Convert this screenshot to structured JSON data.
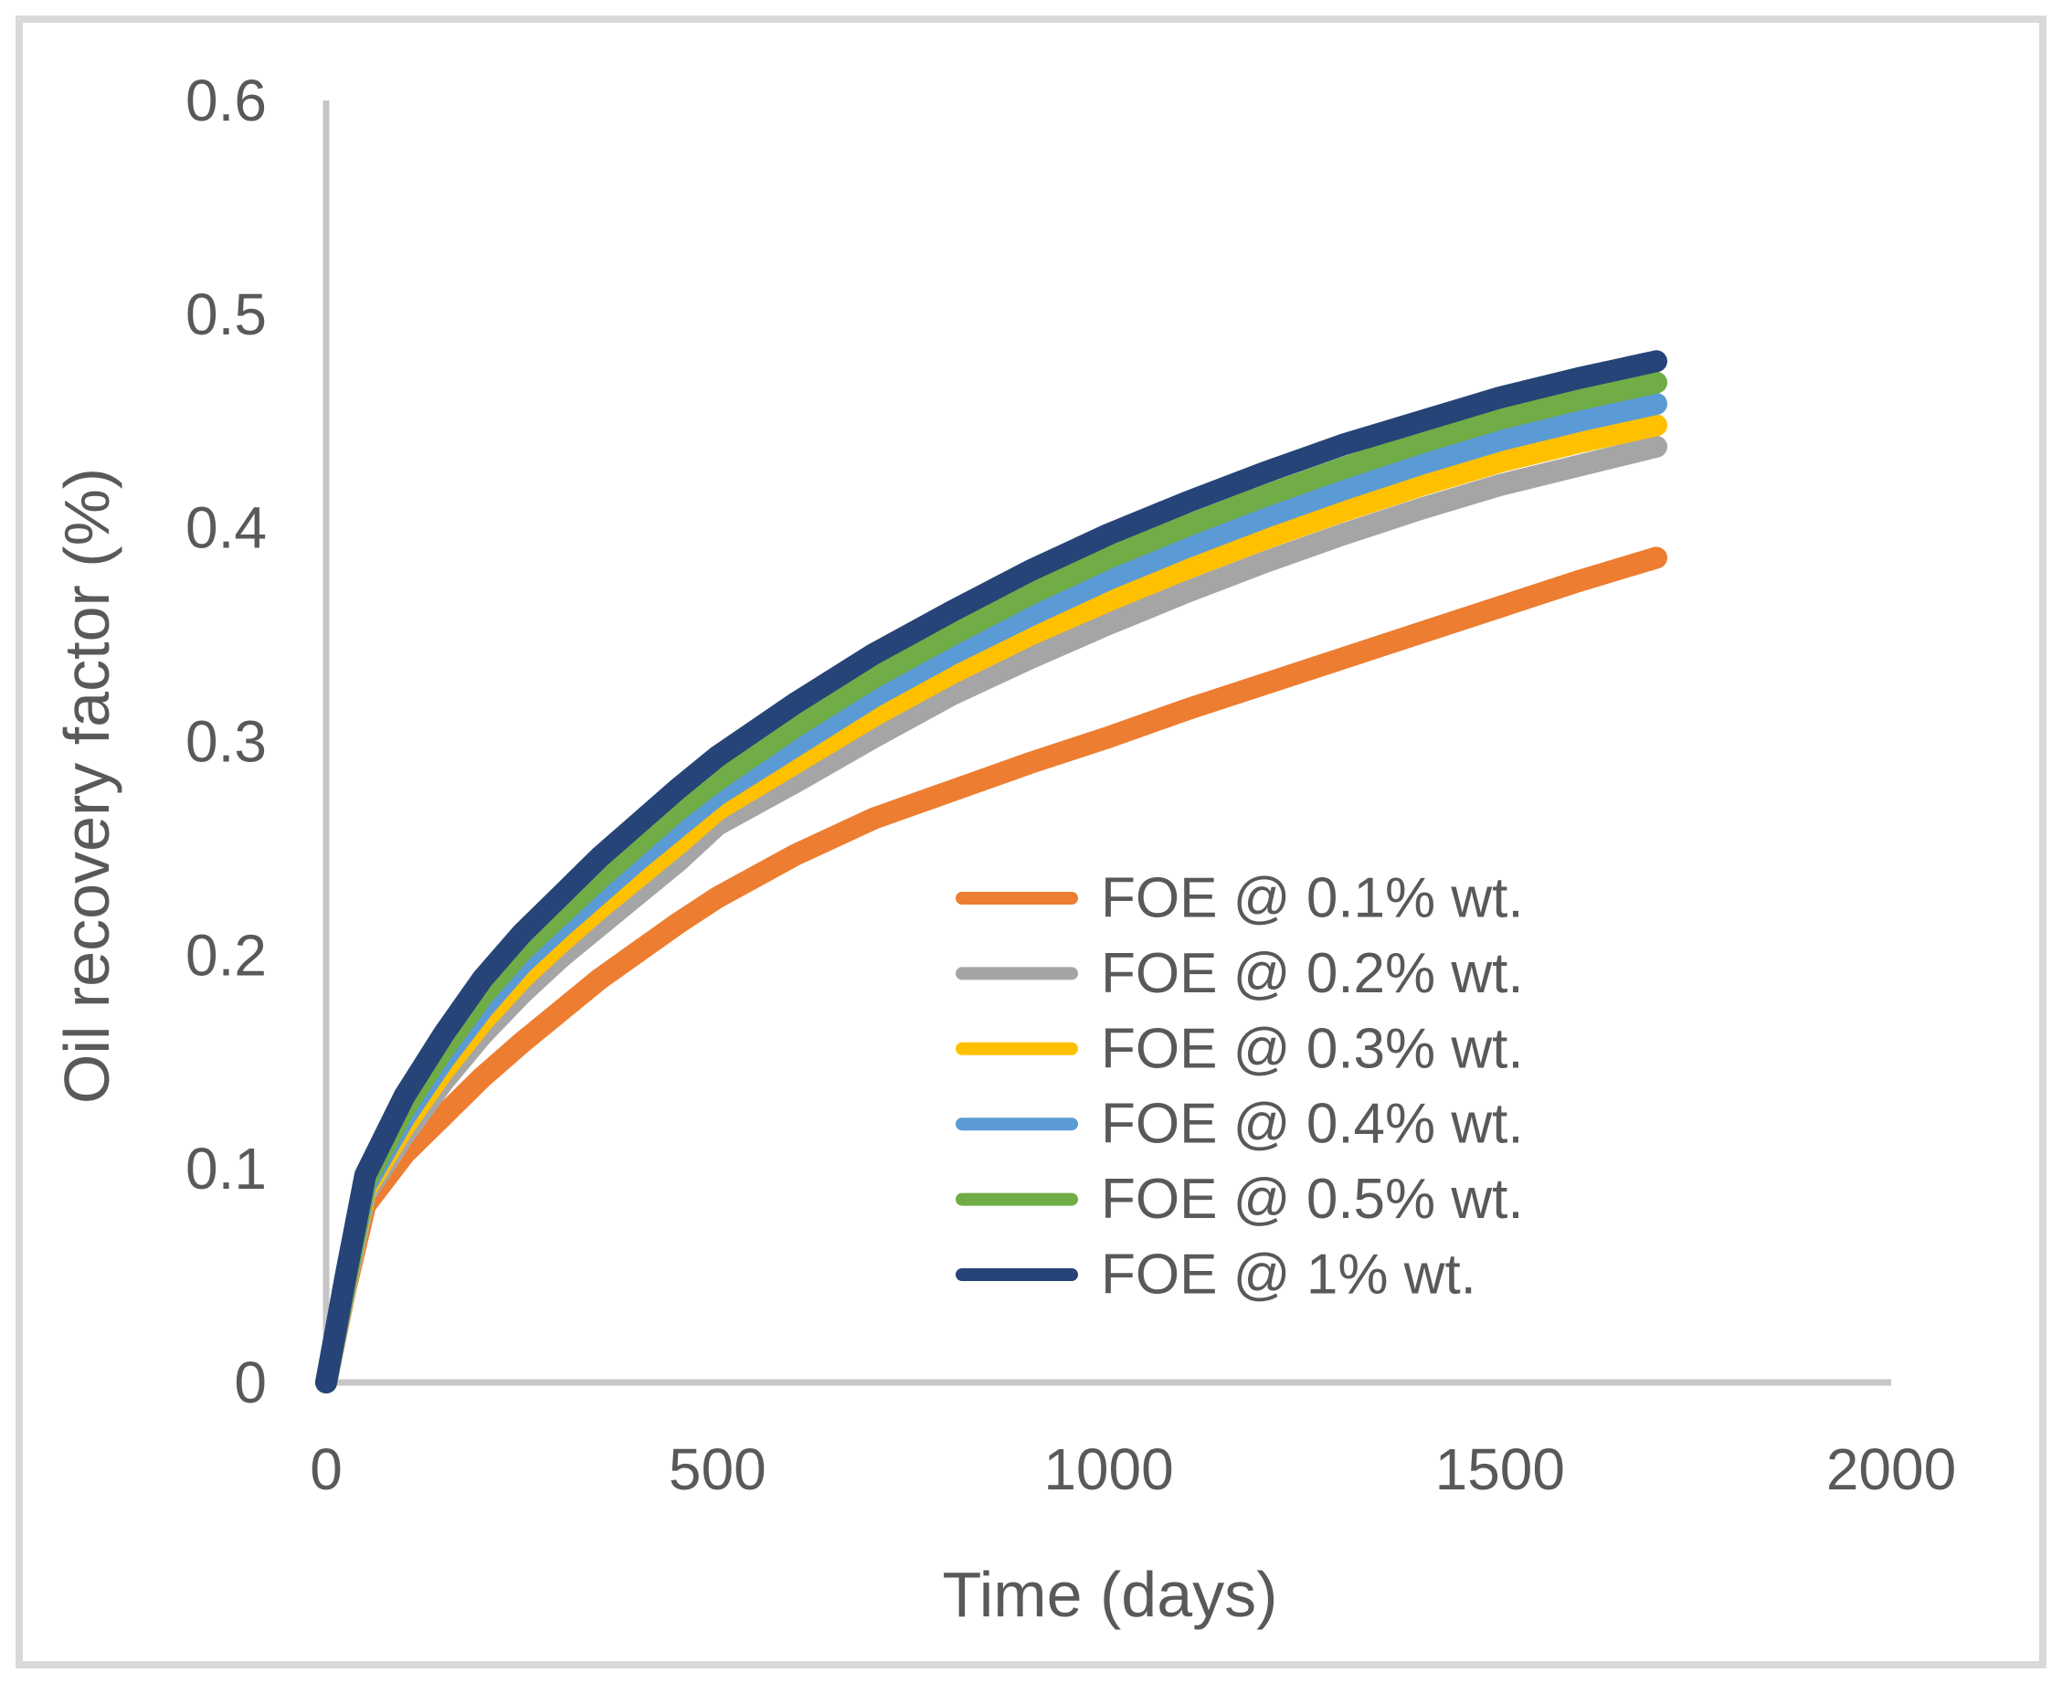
{
  "figure": {
    "background_color": "#FFFFFF",
    "border_color": "#D9D9D9",
    "axis_line_color": "#C6C6C6",
    "text_color": "#595959"
  },
  "chart_data": {
    "type": "line",
    "title": "",
    "xlabel": "Time (days)",
    "ylabel": "Oil recovery factor (%)",
    "xlim": [
      0,
      2000
    ],
    "ylim": [
      0,
      0.6
    ],
    "grid": false,
    "legend_position": "inside-right-middle",
    "xticks": [
      0,
      500,
      1000,
      1500,
      2000
    ],
    "xtick_labels": [
      "0",
      "500",
      "1000",
      "1500",
      "2000"
    ],
    "yticks": [
      0,
      0.1,
      0.2,
      0.3,
      0.4,
      0.5,
      0.6
    ],
    "ytick_labels": [
      "0",
      "0.1",
      "0.2",
      "0.3",
      "0.4",
      "0.5",
      "0.6"
    ],
    "x": [
      0,
      25,
      50,
      100,
      150,
      200,
      250,
      300,
      350,
      400,
      450,
      500,
      600,
      700,
      800,
      900,
      1000,
      1100,
      1200,
      1300,
      1400,
      1500,
      1600,
      1700
    ],
    "series": [
      {
        "name": "FOE @ 0.1% wt.",
        "color": "#ED7D31",
        "values": [
          0,
          0.044,
          0.083,
          0.107,
          0.125,
          0.143,
          0.159,
          0.174,
          0.189,
          0.202,
          0.215,
          0.227,
          0.247,
          0.264,
          0.277,
          0.29,
          0.302,
          0.315,
          0.327,
          0.339,
          0.351,
          0.363,
          0.375,
          0.386
        ]
      },
      {
        "name": "FOE @ 0.2% wt.",
        "color": "#A5A5A5",
        "values": [
          0,
          0.045,
          0.088,
          0.116,
          0.141,
          0.163,
          0.182,
          0.199,
          0.214,
          0.229,
          0.244,
          0.261,
          0.281,
          0.302,
          0.322,
          0.339,
          0.355,
          0.37,
          0.384,
          0.397,
          0.409,
          0.42,
          0.429,
          0.438
        ]
      },
      {
        "name": "FOE @ 0.3% wt.",
        "color": "#FFC000",
        "values": [
          0,
          0.046,
          0.09,
          0.12,
          0.146,
          0.169,
          0.189,
          0.206,
          0.222,
          0.237,
          0.252,
          0.268,
          0.29,
          0.312,
          0.332,
          0.35,
          0.366,
          0.381,
          0.395,
          0.408,
          0.42,
          0.431,
          0.44,
          0.448
        ]
      },
      {
        "name": "FOE @ 0.4% wt.",
        "color": "#5B9BD5",
        "values": [
          0,
          0.047,
          0.092,
          0.124,
          0.151,
          0.175,
          0.196,
          0.213,
          0.229,
          0.245,
          0.26,
          0.275,
          0.298,
          0.321,
          0.341,
          0.359,
          0.376,
          0.391,
          0.405,
          0.418,
          0.43,
          0.441,
          0.45,
          0.458
        ]
      },
      {
        "name": "FOE @ 0.5% wt.",
        "color": "#70AD47",
        "values": [
          0,
          0.048,
          0.094,
          0.128,
          0.156,
          0.181,
          0.202,
          0.219,
          0.236,
          0.252,
          0.268,
          0.282,
          0.307,
          0.33,
          0.35,
          0.369,
          0.386,
          0.401,
          0.415,
          0.428,
          0.44,
          0.451,
          0.46,
          0.468
        ]
      },
      {
        "name": "FOE @ 1% wt.",
        "color": "#264478",
        "values": [
          0,
          0.05,
          0.097,
          0.134,
          0.163,
          0.189,
          0.21,
          0.228,
          0.246,
          0.262,
          0.278,
          0.293,
          0.318,
          0.341,
          0.361,
          0.38,
          0.397,
          0.412,
          0.426,
          0.439,
          0.45,
          0.461,
          0.47,
          0.478
        ]
      }
    ]
  }
}
